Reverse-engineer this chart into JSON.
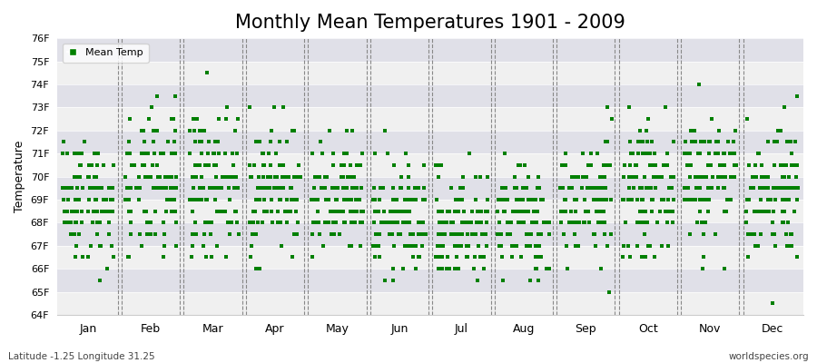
{
  "title": "Monthly Mean Temperatures 1901 - 2009",
  "ylabel": "Temperature",
  "footer_left": "Latitude -1.25 Longitude 31.25",
  "footer_right": "worldspecies.org",
  "legend_label": "Mean Temp",
  "ylim": [
    64,
    76
  ],
  "yticks": [
    64,
    65,
    66,
    67,
    68,
    69,
    70,
    71,
    72,
    73,
    74,
    75,
    76
  ],
  "ytick_labels": [
    "64F",
    "65F",
    "66F",
    "67F",
    "68F",
    "69F",
    "70F",
    "71F",
    "72F",
    "73F",
    "74F",
    "75F",
    "76F"
  ],
  "months": [
    "Jan",
    "Feb",
    "Mar",
    "Apr",
    "May",
    "Jun",
    "Jul",
    "Aug",
    "Sep",
    "Oct",
    "Nov",
    "Dec"
  ],
  "dot_color": "#008000",
  "bg_color": "#f0f0f0",
  "band_light": "#f0f0f0",
  "band_dark": "#e0e0e8",
  "title_fontsize": 15,
  "n_years": 109,
  "seed": 42,
  "monthly_means": [
    69.0,
    69.5,
    69.8,
    69.5,
    68.8,
    68.2,
    67.8,
    68.1,
    69.0,
    69.4,
    70.1,
    69.5
  ],
  "monthly_stds": [
    1.4,
    1.6,
    1.5,
    1.4,
    1.3,
    1.2,
    1.2,
    1.2,
    1.3,
    1.3,
    1.4,
    1.5
  ]
}
